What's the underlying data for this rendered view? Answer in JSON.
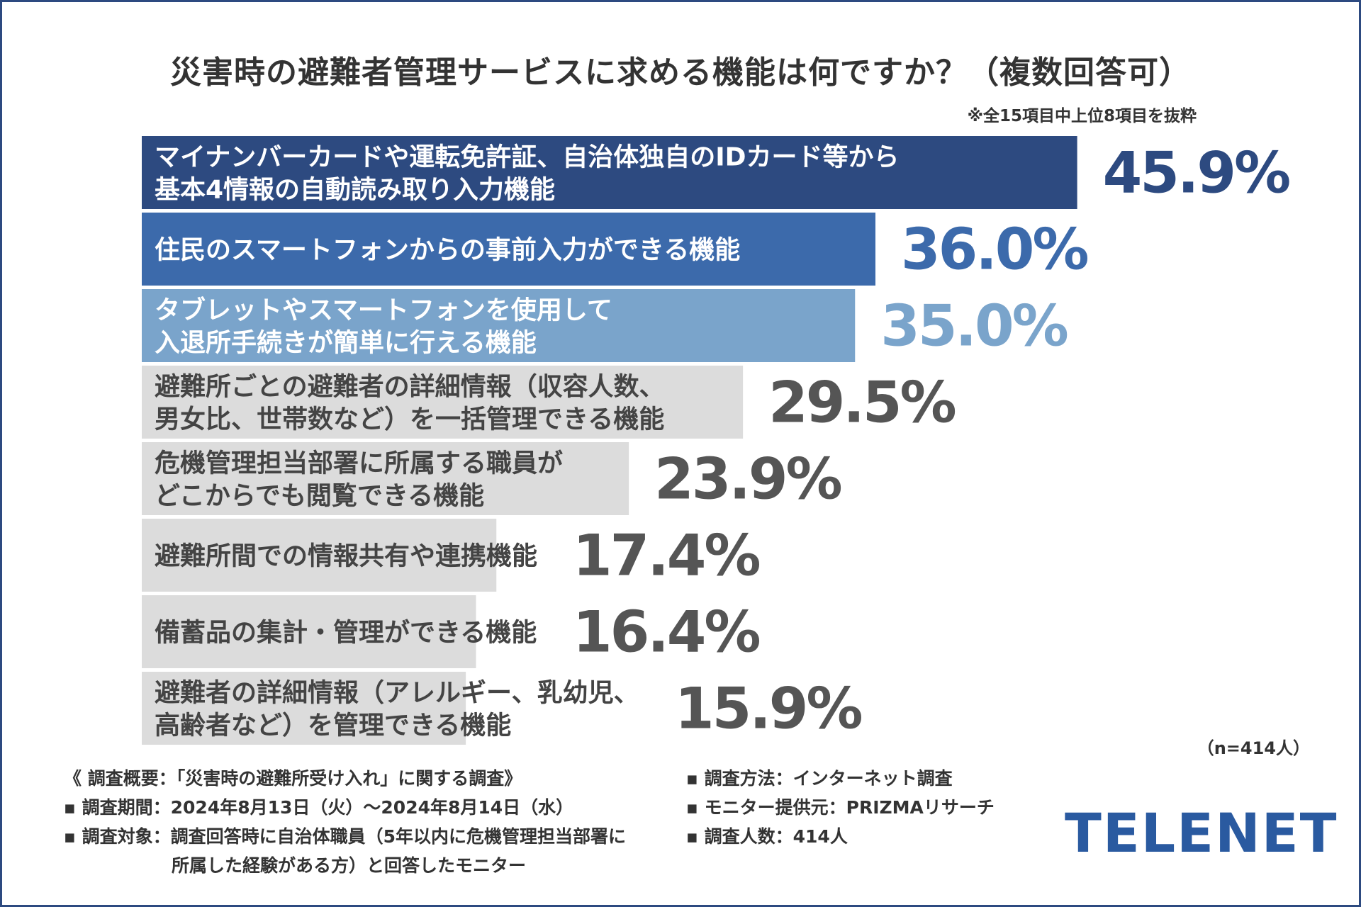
{
  "title": "災害時の避難者管理サービスに求める機能は何ですか？（複数回答可）",
  "note": "※全15項目中上位8項目を抜粋",
  "sample_size": "（n=414人）",
  "chart_data": {
    "type": "bar",
    "orientation": "horizontal",
    "categories": [
      [
        "マイナンバーカードや運転免許証、自治体独自のIDカード等から",
        "基本4情報の自動読み取り入力機能"
      ],
      [
        "住民のスマートフォンからの事前入力ができる機能"
      ],
      [
        "タブレットやスマートフォンを使用して",
        "入退所手続きが簡単に行える機能"
      ],
      [
        "避難所ごとの避難者の詳細情報（収容人数、",
        "男女比、世帯数など）を一括管理できる機能"
      ],
      [
        "危機管理担当部署に所属する職員が",
        "どこからでも閲覧できる機能"
      ],
      [
        "避難所間での情報共有や連携機能"
      ],
      [
        "備蓄品の集計・管理ができる機能"
      ],
      [
        "避難者の詳細情報（アレルギー、乳幼児、",
        "高齢者など）を管理できる機能"
      ]
    ],
    "values": [
      45.9,
      36.0,
      35.0,
      29.5,
      23.9,
      17.4,
      16.4,
      15.9
    ],
    "value_labels": [
      "45.9%",
      "36.0%",
      "35.0%",
      "29.5%",
      "23.9%",
      "17.4%",
      "16.4%",
      "15.9%"
    ],
    "bar_colors": [
      "#2d4a80",
      "#3c6aab",
      "#7aa4cb",
      "#dcdcdc",
      "#dcdcdc",
      "#dcdcdc",
      "#dcdcdc",
      "#dcdcdc"
    ],
    "label_colors": [
      "#ffffff",
      "#ffffff",
      "#ffffff",
      "#444444",
      "#444444",
      "#444444",
      "#444444",
      "#444444"
    ],
    "value_colors": [
      "#2d4a80",
      "#3c6aab",
      "#7aa4cb",
      "#555555",
      "#555555",
      "#555555",
      "#555555",
      "#555555"
    ],
    "xlim": [
      0,
      48
    ],
    "grid": false
  },
  "survey": {
    "left": [
      "《 調査概要：「災害時の避難所受け入れ」に関する調査》",
      "▪ 調査期間：2024年8月13日（火）〜2024年8月14日（水）",
      "▪ 調査対象：調査回答時に自治体職員（5年以内に危機管理担当部署に",
      "所属した経験がある方）と回答したモニター"
    ],
    "right": [
      "▪ 調査方法：インターネット調査",
      "▪ モニター提供元：PRIZMAリサーチ",
      "▪ 調査人数：414人"
    ]
  },
  "logo": "TELENET"
}
